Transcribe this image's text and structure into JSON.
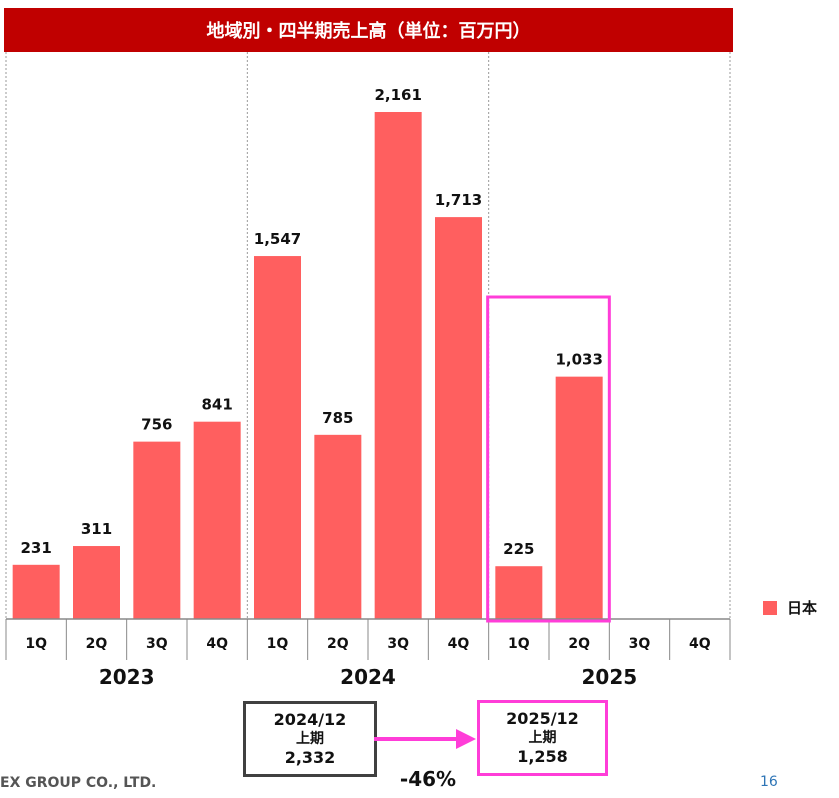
{
  "colors": {
    "header": "#c00000",
    "bar": "#ff5f5f",
    "highlight": "#ff3dd8",
    "arrow": "#ff3dd8"
  },
  "chart_data": {
    "type": "bar",
    "title": "地域別・四半期売上高（単位：百万円）",
    "categories": [
      "1Q",
      "2Q",
      "3Q",
      "4Q",
      "1Q",
      "2Q",
      "3Q",
      "4Q",
      "1Q",
      "2Q",
      "3Q",
      "4Q"
    ],
    "years": [
      {
        "label": "2023",
        "quarters": [
          "1Q",
          "2Q",
          "3Q",
          "4Q"
        ]
      },
      {
        "label": "2024",
        "quarters": [
          "1Q",
          "2Q",
          "3Q",
          "4Q"
        ]
      },
      {
        "label": "2025",
        "quarters": [
          "1Q",
          "2Q",
          "3Q",
          "4Q"
        ]
      }
    ],
    "series": [
      {
        "name": "日本",
        "values": [
          231,
          311,
          756,
          841,
          1547,
          785,
          2161,
          1713,
          225,
          1033,
          null,
          null
        ]
      }
    ],
    "data_labels": [
      "231",
      "311",
      "756",
      "841",
      "1,547",
      "785",
      "2,161",
      "1,713",
      "225",
      "1,033",
      "",
      ""
    ],
    "ylim": [
      0,
      2400
    ],
    "grid": false,
    "legend_position": "right"
  },
  "comparison": {
    "previous": {
      "period": "2024/12",
      "half": "上期",
      "amount": "2,332"
    },
    "current": {
      "period": "2025/12",
      "half": "上期",
      "amount": "1,258"
    },
    "change": "-46%"
  },
  "footer": {
    "company": "EX GROUP CO., LTD.",
    "page": "16"
  }
}
